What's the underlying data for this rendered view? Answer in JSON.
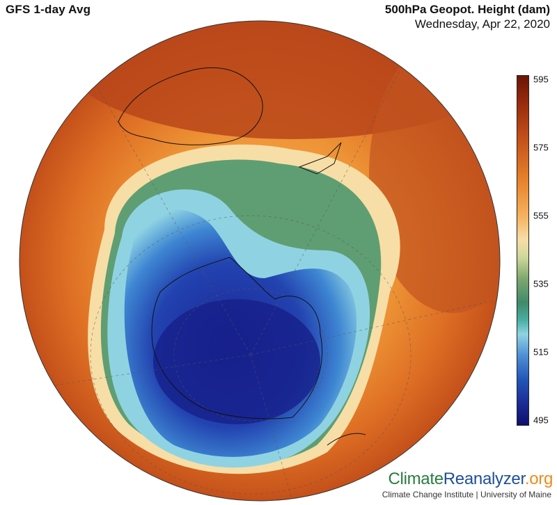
{
  "header": {
    "left_title": "GFS 1-day Avg",
    "right_title": "500hPa Geopot. Height (dam)",
    "date": "Wednesday, Apr 22, 2020"
  },
  "legend": {
    "unit": "dam",
    "ticks": [
      "595",
      "575",
      "555",
      "535",
      "515",
      "495"
    ],
    "colors": [
      "#6b1505",
      "#c4501a",
      "#f6b15c",
      "#f7dea6",
      "#3f8b69",
      "#8fd3e2",
      "#2256b8",
      "#0e0f6e"
    ]
  },
  "map": {
    "projection": "orthographic",
    "center": "South Pole"
  },
  "brand": {
    "part1": "Climate",
    "part2": "Reanalyzer",
    "part3": ".org",
    "credit": "Climate Change Institute | University of Maine"
  }
}
